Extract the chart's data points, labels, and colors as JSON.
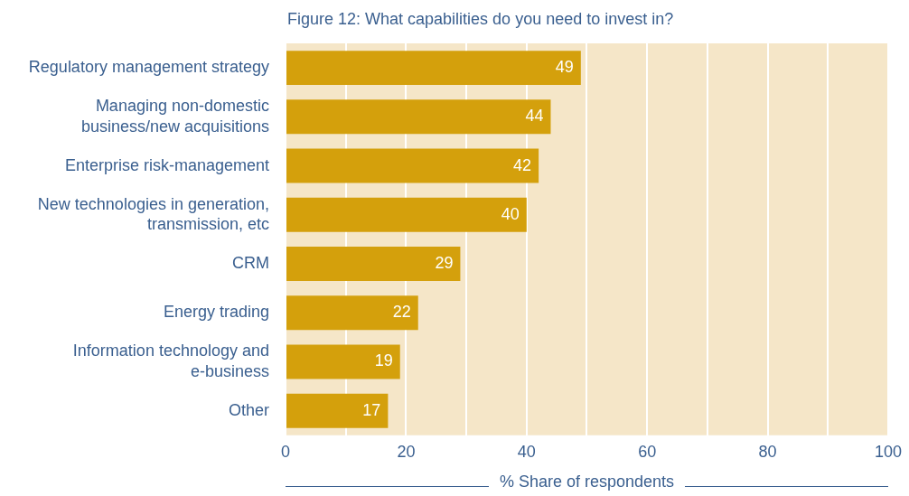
{
  "chart_data": {
    "type": "bar",
    "orientation": "horizontal",
    "title": "Figure 12: What capabilities do you need to invest in?",
    "xlabel": "% Share of respondents",
    "categories": [
      "Regulatory management strategy",
      "Managing non-domestic business/new acquisitions",
      "Enterprise risk-management",
      "New technologies in generation, transmission, etc",
      "CRM",
      "Energy trading",
      "Information technology and e-business",
      "Other"
    ],
    "values": [
      49,
      44,
      42,
      40,
      29,
      22,
      19,
      17
    ],
    "color": "#d4a00c",
    "xlim": [
      0,
      100
    ],
    "xticks": [
      0,
      {
        "value": 10,
        "label": null
      },
      20,
      {
        "value": 30,
        "label": null
      },
      40,
      {
        "value": 50,
        "label": null
      },
      60,
      {
        "value": 70,
        "label": null
      },
      80,
      {
        "value": 90,
        "label": null
      },
      100
    ],
    "grid": "x",
    "data_labels": true,
    "legend": false
  }
}
